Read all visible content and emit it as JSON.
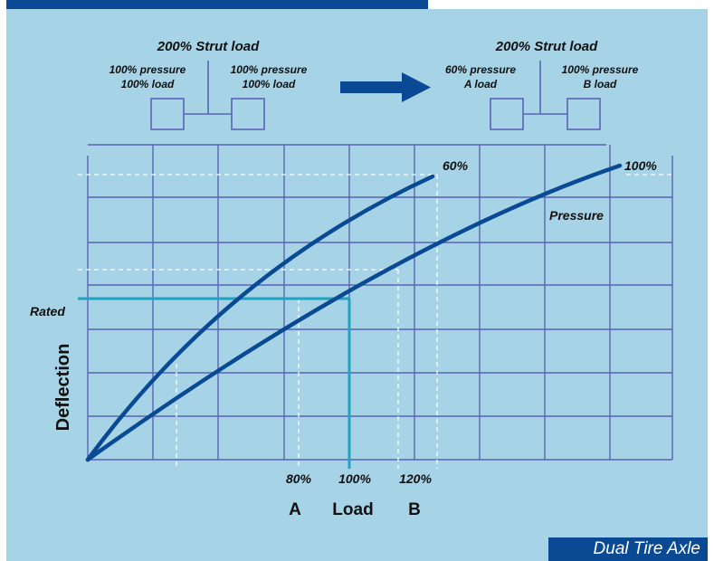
{
  "left_config": {
    "title": "200% Strut load",
    "left_label_line1": "100% pressure",
    "left_label_line2": "100% load",
    "right_label_line1": "100% pressure",
    "right_label_line2": "100% load"
  },
  "right_config": {
    "title": "200% Strut load",
    "left_label_line1": "60% pressure",
    "left_label_line2": "A load",
    "right_label_line1": "100% pressure",
    "right_label_line2": "B load"
  },
  "chart": {
    "curve_60_label": "60%",
    "curve_100_label": "100%",
    "pressure_label": "Pressure",
    "rated_label": "Rated",
    "y_axis_label": "Deflection",
    "x_tick_80": "80%",
    "x_tick_100": "100%",
    "x_tick_120": "120%",
    "x_letter_a": "A",
    "x_axis_label": "Load",
    "x_letter_b": "B"
  },
  "footer": {
    "title": "Dual Tire Axle"
  },
  "colors": {
    "panel": "#a6d3e6",
    "grid": "#5b63b6",
    "curve": "#0a4a94",
    "rated": "#1fa3c0",
    "band": "#0a4a94"
  }
}
